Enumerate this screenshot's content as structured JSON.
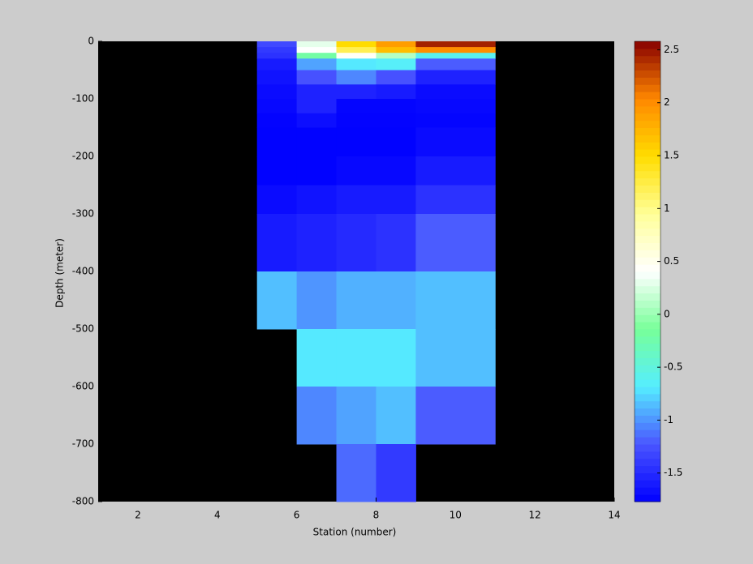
{
  "chart_data": {
    "type": "heatmap",
    "x_label": "Station (number)",
    "y_label": "Depth (meter)",
    "xlim": [
      1,
      14
    ],
    "ylim": [
      -800,
      0
    ],
    "xticks": [
      2,
      4,
      6,
      8,
      10,
      12,
      14
    ],
    "yticks": [
      0,
      -100,
      -200,
      -300,
      -400,
      -500,
      -600,
      -700,
      -800
    ],
    "x_edges": [
      5,
      6,
      7,
      8,
      9,
      11
    ],
    "y_edges": [
      0,
      -10,
      -20,
      -30,
      -50,
      -75,
      -100,
      -125,
      -150,
      -200,
      -250,
      -300,
      -400,
      -500,
      -600,
      -700,
      -800
    ],
    "values": [
      [
        -1.3,
        0.3,
        1.5,
        1.9,
        2.45
      ],
      [
        -1.4,
        0.4,
        1.2,
        1.7,
        2.0
      ],
      [
        -1.45,
        -0.2,
        0.45,
        0.1,
        -0.6
      ],
      [
        -1.6,
        -0.95,
        -0.7,
        -0.65,
        -1.2
      ],
      [
        -1.65,
        -1.25,
        -1.05,
        -1.25,
        -1.55
      ],
      [
        -1.7,
        -1.55,
        -1.55,
        -1.6,
        -1.7
      ],
      [
        -1.72,
        -1.55,
        -1.74,
        -1.74,
        -1.72
      ],
      [
        -1.75,
        -1.68,
        -1.75,
        -1.75,
        -1.74
      ],
      [
        -1.76,
        -1.76,
        -1.76,
        -1.76,
        -1.7
      ],
      [
        -1.76,
        -1.76,
        -1.72,
        -1.72,
        -1.6
      ],
      [
        -1.7,
        -1.65,
        -1.6,
        -1.6,
        -1.45
      ],
      [
        -1.6,
        -1.55,
        -1.5,
        -1.45,
        -1.2
      ],
      [
        -0.85,
        -1.0,
        -0.9,
        -0.9,
        -0.85
      ],
      [
        null,
        -0.7,
        -0.7,
        -0.7,
        -0.85
      ],
      [
        null,
        -1.05,
        -0.95,
        -0.85,
        -1.2
      ],
      [
        null,
        null,
        -1.15,
        -1.4,
        null
      ]
    ],
    "clim": [
      -1.77,
      2.58
    ],
    "colorbar_ticks": [
      -1.5,
      -1,
      -0.5,
      0,
      0.5,
      1,
      1.5,
      2,
      2.5
    ],
    "colormap": [
      "#0000ff",
      "#4a55ff",
      "#55eeff",
      "#77ff99",
      "#ffffff",
      "#ffff99",
      "#ffdd00",
      "#ff8800",
      "#880000"
    ],
    "background": "#000000"
  }
}
